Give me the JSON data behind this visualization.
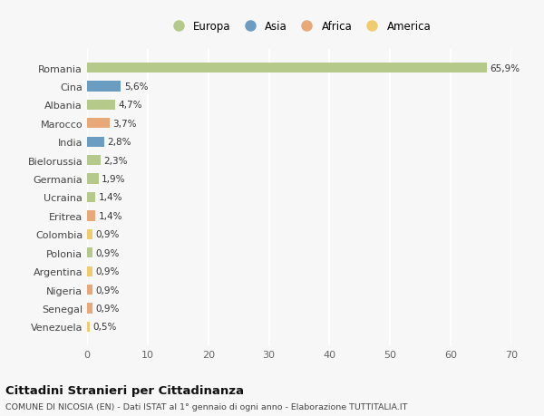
{
  "countries": [
    "Romania",
    "Cina",
    "Albania",
    "Marocco",
    "India",
    "Bielorussia",
    "Germania",
    "Ucraina",
    "Eritrea",
    "Colombia",
    "Polonia",
    "Argentina",
    "Nigeria",
    "Senegal",
    "Venezuela"
  ],
  "values": [
    65.9,
    5.6,
    4.7,
    3.7,
    2.8,
    2.3,
    1.9,
    1.4,
    1.4,
    0.9,
    0.9,
    0.9,
    0.9,
    0.9,
    0.5
  ],
  "labels": [
    "65,9%",
    "5,6%",
    "4,7%",
    "3,7%",
    "2,8%",
    "2,3%",
    "1,9%",
    "1,4%",
    "1,4%",
    "0,9%",
    "0,9%",
    "0,9%",
    "0,9%",
    "0,9%",
    "0,5%"
  ],
  "continents": [
    "Europa",
    "Asia",
    "Europa",
    "Africa",
    "Asia",
    "Europa",
    "Europa",
    "Europa",
    "Africa",
    "America",
    "Europa",
    "America",
    "Africa",
    "Africa",
    "America"
  ],
  "continent_colors": {
    "Europa": "#b5c98a",
    "Asia": "#6b9dc2",
    "Africa": "#e8a878",
    "America": "#f0cc6e"
  },
  "legend_order": [
    "Europa",
    "Asia",
    "Africa",
    "America"
  ],
  "legend_colors": [
    "#b5c98a",
    "#6b9dc2",
    "#e8a878",
    "#f0cc6e"
  ],
  "background_color": "#f7f7f7",
  "title": "Cittadini Stranieri per Cittadinanza",
  "subtitle": "COMUNE DI NICOSIA (EN) - Dati ISTAT al 1° gennaio di ogni anno - Elaborazione TUTTITALIA.IT",
  "xlim": [
    0,
    70
  ],
  "xticks": [
    0,
    10,
    20,
    30,
    40,
    50,
    60,
    70
  ]
}
